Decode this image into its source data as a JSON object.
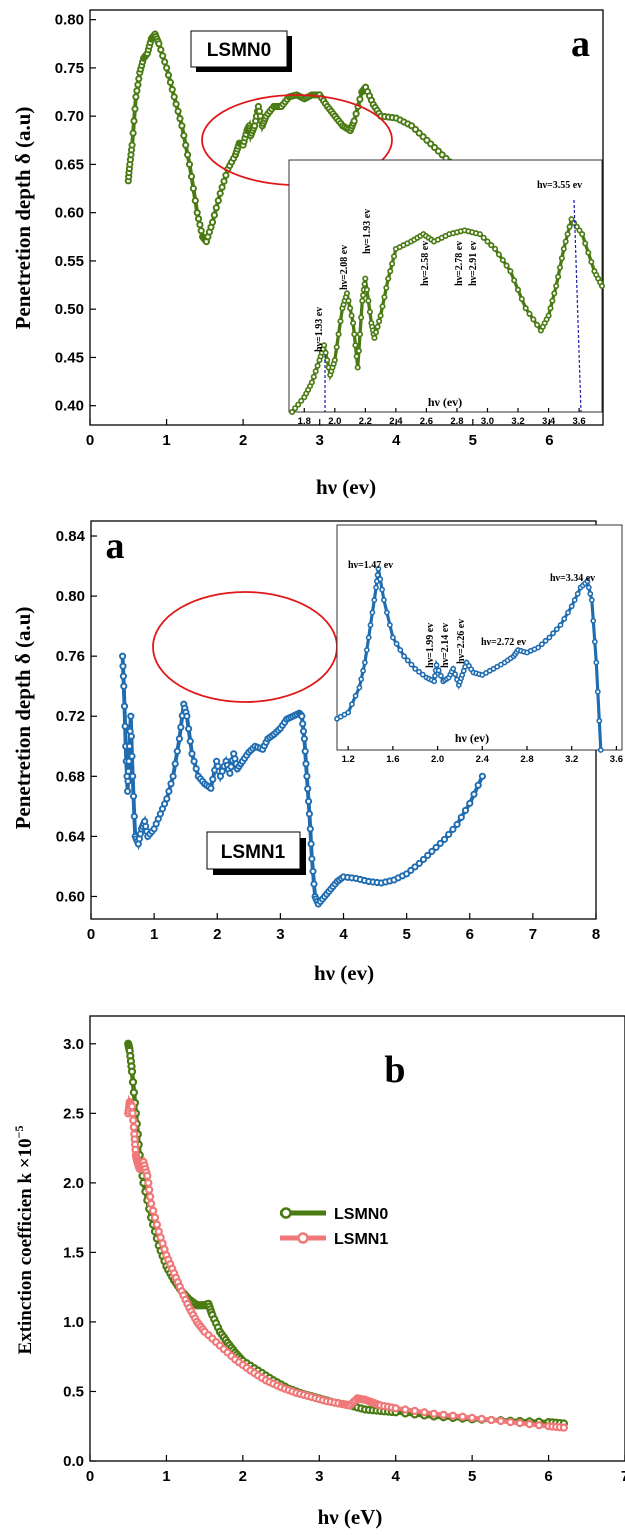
{
  "colors": {
    "lsmn0": "#4a7a12",
    "lsmn1": "#1f6cb0",
    "lsmn1_k": "#f07878",
    "ellipse": "#e01818",
    "marker": "#1a1aa8"
  },
  "chart_data": [
    {
      "id": "panel1",
      "type": "line",
      "panel_letter": "a",
      "box_label": "LSMN0",
      "xlabel": "hν (ev)",
      "ylabel": "Penetretion depth δ (a.u)",
      "xlim": [
        0,
        6.7
      ],
      "ylim": [
        0.38,
        0.81
      ],
      "xticks": [
        0,
        1,
        2,
        3,
        4,
        5,
        6
      ],
      "yticks": [
        0.4,
        0.45,
        0.5,
        0.55,
        0.6,
        0.65,
        0.7,
        0.75,
        0.8
      ],
      "series": [
        {
          "name": "LSMN0",
          "x": [
            0.5,
            0.52,
            0.55,
            0.6,
            0.65,
            0.7,
            0.75,
            0.8,
            0.85,
            0.9,
            1.0,
            1.1,
            1.2,
            1.3,
            1.4,
            1.47,
            1.52,
            1.6,
            1.7,
            1.8,
            1.9,
            1.95,
            2.0,
            2.05,
            2.08,
            2.1,
            2.15,
            2.2,
            2.25,
            2.3,
            2.4,
            2.5,
            2.6,
            2.7,
            2.8,
            2.9,
            3.0,
            3.1,
            3.2,
            3.3,
            3.4,
            3.45,
            3.55,
            3.6,
            3.7,
            3.8,
            4.0,
            4.2,
            4.4,
            4.6,
            4.8,
            5.0,
            5.2,
            5.4,
            5.6,
            5.8,
            6.0,
            6.2
          ],
          "values": [
            0.633,
            0.65,
            0.67,
            0.72,
            0.745,
            0.76,
            0.765,
            0.78,
            0.785,
            0.775,
            0.75,
            0.72,
            0.69,
            0.65,
            0.6,
            0.575,
            0.57,
            0.59,
            0.62,
            0.645,
            0.66,
            0.672,
            0.67,
            0.685,
            0.69,
            0.68,
            0.69,
            0.71,
            0.69,
            0.7,
            0.71,
            0.71,
            0.72,
            0.722,
            0.718,
            0.722,
            0.722,
            0.71,
            0.7,
            0.69,
            0.685,
            0.695,
            0.725,
            0.73,
            0.712,
            0.7,
            0.698,
            0.69,
            0.675,
            0.66,
            0.645,
            0.638,
            0.63,
            0.625,
            0.615,
            0.605,
            0.595,
            0.585
          ]
        }
      ],
      "inset": {
        "xlabel": "hν (ev)",
        "xlim": [
          1.7,
          3.75
        ],
        "ylim": [
          0.38,
          0.72
        ],
        "xticks": [
          "1.8",
          "2.0",
          "2.2",
          "2.4",
          "2.6",
          "2.8",
          "3.0",
          "3.2",
          "3.4",
          "3.6"
        ],
        "x": [
          1.72,
          1.8,
          1.85,
          1.9,
          1.93,
          1.97,
          2.0,
          2.05,
          2.08,
          2.12,
          2.15,
          2.18,
          2.2,
          2.24,
          2.26,
          2.3,
          2.35,
          2.4,
          2.5,
          2.58,
          2.65,
          2.75,
          2.85,
          2.95,
          3.05,
          3.15,
          3.25,
          3.35,
          3.4,
          3.45,
          3.5,
          3.55,
          3.62,
          3.7,
          3.75
        ],
        "values": [
          0.38,
          0.4,
          0.42,
          0.45,
          0.47,
          0.43,
          0.45,
          0.52,
          0.54,
          0.5,
          0.44,
          0.53,
          0.56,
          0.5,
          0.48,
          0.51,
          0.56,
          0.6,
          0.61,
          0.62,
          0.61,
          0.62,
          0.625,
          0.62,
          0.6,
          0.57,
          0.52,
          0.49,
          0.51,
          0.55,
          0.6,
          0.64,
          0.62,
          0.57,
          0.55
        ],
        "annotations": [
          "hν=1.93 ev",
          "hν=2.08 ev",
          "hν=1.93 ev",
          "hν=2.58 ev",
          "hν=2.78 ev",
          "hν=2.91 ev",
          "hν=3.55 ev"
        ]
      }
    },
    {
      "id": "panel2",
      "type": "line",
      "panel_letter": "a",
      "box_label": "LSMN1",
      "xlabel": "hν (ev)",
      "ylabel": "Penetretion depth δ (a.u)",
      "xlim": [
        0,
        8
      ],
      "ylim": [
        0.585,
        0.85
      ],
      "xticks": [
        0,
        1,
        2,
        3,
        4,
        5,
        6,
        7,
        8
      ],
      "yticks": [
        0.6,
        0.64,
        0.68,
        0.72,
        0.76,
        0.8,
        0.84
      ],
      "series": [
        {
          "name": "LSMN1",
          "x": [
            0.5,
            0.52,
            0.55,
            0.58,
            0.6,
            0.63,
            0.66,
            0.7,
            0.75,
            0.8,
            0.85,
            0.9,
            1.0,
            1.1,
            1.2,
            1.3,
            1.4,
            1.47,
            1.52,
            1.6,
            1.7,
            1.8,
            1.9,
            1.99,
            2.05,
            2.14,
            2.2,
            2.26,
            2.32,
            2.4,
            2.5,
            2.6,
            2.72,
            2.8,
            2.9,
            3.0,
            3.1,
            3.2,
            3.3,
            3.34,
            3.38,
            3.42,
            3.46,
            3.5,
            3.55,
            3.6,
            3.7,
            3.8,
            3.9,
            4.0,
            4.2,
            4.4,
            4.6,
            4.8,
            5.0,
            5.2,
            5.4,
            5.6,
            5.8,
            6.0,
            6.2
          ],
          "values": [
            0.76,
            0.74,
            0.7,
            0.67,
            0.69,
            0.72,
            0.68,
            0.64,
            0.635,
            0.645,
            0.65,
            0.64,
            0.645,
            0.655,
            0.665,
            0.68,
            0.705,
            0.728,
            0.72,
            0.695,
            0.68,
            0.675,
            0.672,
            0.69,
            0.68,
            0.69,
            0.682,
            0.695,
            0.685,
            0.69,
            0.696,
            0.7,
            0.698,
            0.705,
            0.708,
            0.712,
            0.718,
            0.72,
            0.722,
            0.72,
            0.705,
            0.68,
            0.655,
            0.625,
            0.6,
            0.595,
            0.6,
            0.605,
            0.61,
            0.613,
            0.612,
            0.61,
            0.609,
            0.611,
            0.615,
            0.622,
            0.63,
            0.638,
            0.648,
            0.662,
            0.68
          ]
        }
      ],
      "inset": {
        "xlabel": "hν (ev)",
        "xlim": [
          1.1,
          3.65
        ],
        "ylim": [
          0.67,
          0.85
        ],
        "xticks": [
          "1.2",
          "1.6",
          "2.0",
          "2.4",
          "2.8",
          "3.2",
          "3.6"
        ],
        "x": [
          1.1,
          1.2,
          1.3,
          1.35,
          1.4,
          1.45,
          1.47,
          1.52,
          1.6,
          1.7,
          1.8,
          1.9,
          1.97,
          1.99,
          2.05,
          2.1,
          2.14,
          2.19,
          2.22,
          2.26,
          2.32,
          2.4,
          2.5,
          2.6,
          2.68,
          2.72,
          2.8,
          2.9,
          3.0,
          3.1,
          3.2,
          3.28,
          3.34,
          3.38,
          3.42,
          3.46
        ],
        "values": [
          0.695,
          0.7,
          0.72,
          0.74,
          0.77,
          0.8,
          0.815,
          0.79,
          0.76,
          0.745,
          0.735,
          0.728,
          0.725,
          0.738,
          0.725,
          0.728,
          0.735,
          0.722,
          0.73,
          0.74,
          0.732,
          0.73,
          0.735,
          0.74,
          0.745,
          0.75,
          0.748,
          0.752,
          0.76,
          0.77,
          0.785,
          0.8,
          0.805,
          0.79,
          0.74,
          0.67
        ],
        "annotations": [
          "hν=1.47 ev",
          "hν=1.99 ev",
          "hν=2.14 ev",
          "hν=2.26 ev",
          "hν=2.72 ev",
          "hν=3.34 ev"
        ]
      }
    },
    {
      "id": "panel3",
      "type": "line",
      "panel_letter": "b",
      "xlabel": "hν (eV)",
      "ylabel": "Extinction coefficien k ×10",
      "ylabel_exp": "−5",
      "xlim": [
        0,
        7
      ],
      "ylim": [
        0,
        3.2
      ],
      "xticks": [
        0,
        1,
        2,
        3,
        4,
        5,
        6,
        7
      ],
      "yticks": [
        "0.0",
        "0.5",
        "1.0",
        "1.5",
        "2.0",
        "2.5",
        "3.0"
      ],
      "series": [
        {
          "name": "LSMN0",
          "x": [
            0.5,
            0.52,
            0.55,
            0.6,
            0.65,
            0.7,
            0.8,
            0.9,
            1.0,
            1.1,
            1.2,
            1.3,
            1.4,
            1.5,
            1.55,
            1.6,
            1.7,
            1.8,
            1.9,
            2.0,
            2.2,
            2.4,
            2.6,
            2.8,
            3.0,
            3.2,
            3.4,
            3.6,
            3.8,
            4.0,
            4.5,
            5.0,
            5.5,
            6.0,
            6.2
          ],
          "values": [
            3.0,
            2.95,
            2.8,
            2.5,
            2.2,
            2.0,
            1.75,
            1.55,
            1.4,
            1.3,
            1.22,
            1.16,
            1.12,
            1.12,
            1.13,
            1.05,
            0.93,
            0.85,
            0.78,
            0.72,
            0.65,
            0.58,
            0.52,
            0.48,
            0.45,
            0.42,
            0.4,
            0.37,
            0.36,
            0.35,
            0.32,
            0.3,
            0.29,
            0.28,
            0.27
          ]
        },
        {
          "name": "LSMN1",
          "x": [
            0.5,
            0.52,
            0.55,
            0.58,
            0.6,
            0.62,
            0.65,
            0.7,
            0.75,
            0.8,
            0.9,
            1.0,
            1.1,
            1.2,
            1.3,
            1.4,
            1.5,
            1.7,
            1.9,
            2.1,
            2.3,
            2.5,
            2.7,
            2.9,
            3.1,
            3.3,
            3.4,
            3.5,
            3.6,
            3.7,
            3.8,
            4.0,
            4.5,
            5.0,
            5.5,
            6.0,
            6.2
          ],
          "values": [
            2.5,
            2.58,
            2.55,
            2.35,
            2.2,
            2.15,
            2.1,
            2.15,
            2.05,
            1.85,
            1.65,
            1.48,
            1.35,
            1.22,
            1.1,
            1.0,
            0.93,
            0.83,
            0.73,
            0.65,
            0.58,
            0.53,
            0.49,
            0.46,
            0.43,
            0.41,
            0.4,
            0.45,
            0.44,
            0.42,
            0.4,
            0.38,
            0.34,
            0.31,
            0.28,
            0.25,
            0.24
          ]
        }
      ],
      "legend": [
        "LSMN0",
        "LSMN1"
      ]
    }
  ]
}
